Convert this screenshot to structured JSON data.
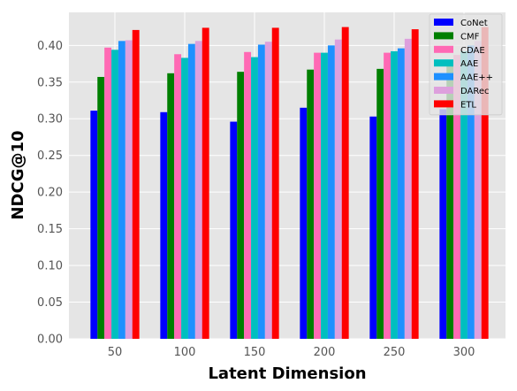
{
  "chart_data": {
    "type": "bar",
    "xlabel": "Latent Dimension",
    "ylabel": "NDCG@10",
    "categories": [
      "50",
      "100",
      "150",
      "200",
      "250",
      "300"
    ],
    "ylim": [
      0,
      0.445
    ],
    "yticks": [
      "0.00",
      "0.05",
      "0.10",
      "0.15",
      "0.20",
      "0.25",
      "0.30",
      "0.35",
      "0.40"
    ],
    "grid": true,
    "background": "#e5e5e5",
    "legend_position": "top-right",
    "series": [
      {
        "name": "CoNet",
        "color": "#0000ff",
        "values": [
          0.311,
          0.309,
          0.296,
          0.315,
          0.303,
          0.313
        ]
      },
      {
        "name": "CMF",
        "color": "#007f00",
        "values": [
          0.357,
          0.362,
          0.364,
          0.367,
          0.368,
          0.372
        ]
      },
      {
        "name": "CDAE",
        "color": "#ff69b4",
        "values": [
          0.397,
          0.388,
          0.391,
          0.39,
          0.39,
          0.387
        ]
      },
      {
        "name": "AAE",
        "color": "#00bfbf",
        "values": [
          0.394,
          0.383,
          0.384,
          0.39,
          0.392,
          0.392
        ]
      },
      {
        "name": "AAE++",
        "color": "#1e90ff",
        "values": [
          0.406,
          0.402,
          0.401,
          0.4,
          0.396,
          0.4
        ]
      },
      {
        "name": "DARec",
        "color": "#dda0dd",
        "values": [
          0.407,
          0.406,
          0.405,
          0.408,
          0.409,
          0.406
        ]
      },
      {
        "name": "ETL",
        "color": "#ff0000",
        "values": [
          0.421,
          0.424,
          0.424,
          0.425,
          0.422,
          0.425
        ]
      }
    ]
  }
}
